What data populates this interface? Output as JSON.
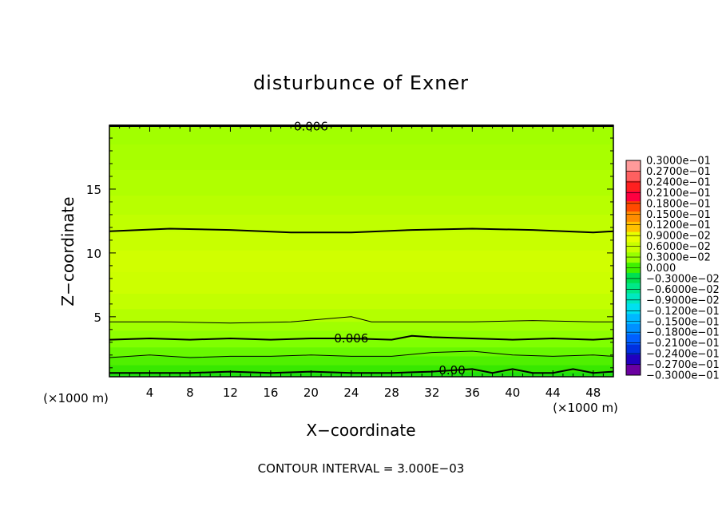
{
  "chart_data": {
    "type": "contour",
    "title": "disturbunce of Exner",
    "xlabel": "X−coordinate",
    "ylabel": "Z−coordinate",
    "x_unit_label": "(×1000 m)",
    "y_unit_label": "(×1000 m)",
    "xlim": [
      0,
      50
    ],
    "ylim": [
      0.3,
      20
    ],
    "x_ticks": [
      4,
      8,
      12,
      16,
      20,
      24,
      28,
      32,
      36,
      40,
      44,
      48
    ],
    "y_ticks": [
      5,
      10,
      15
    ],
    "contour_interval_note": "CONTOUR INTERVAL = 3.000E−03",
    "contour_interval": 0.003,
    "colorbar": {
      "labels": [
        "0.3000e−01",
        "0.2700e−01",
        "0.2400e−01",
        "0.2100e−01",
        "0.1800e−01",
        "0.1500e−01",
        "0.1200e−01",
        "0.9000e−02",
        "0.6000e−02",
        "0.3000e−02",
        "0.000",
        "−0.3000e−02",
        "−0.6000e−02",
        "−0.9000e−02",
        "−0.1200e−01",
        "−0.1500e−01",
        "−0.1800e−01",
        "−0.2100e−01",
        "−0.2400e−01",
        "−0.2700e−01",
        "−0.3000e−01"
      ],
      "colors": [
        "#ff9a9a",
        "#ff6060",
        "#ff2020",
        "#ff0040",
        "#ff4a00",
        "#ff8c00",
        "#ffc000",
        "#e8ff00",
        "#c8ff00",
        "#98ff00",
        "#40f000",
        "#00e050",
        "#00e888",
        "#00e8c0",
        "#00e0f0",
        "#00b8ff",
        "#0090ff",
        "#0060ff",
        "#0030e0",
        "#2000c0",
        "#6a00a0"
      ]
    },
    "contour_labels": [
      {
        "text": "0.006",
        "x": 24,
        "z": 3.3
      },
      {
        "text": "0.00",
        "x": 34,
        "z": 0.8
      },
      {
        "text": "0.006",
        "x": 20,
        "z": 19.9
      }
    ],
    "contour_lines": [
      {
        "level": 0.006,
        "x": [
          0,
          6,
          12,
          18,
          24,
          30,
          36,
          42,
          48,
          50
        ],
        "z": [
          11.7,
          11.9,
          11.8,
          11.6,
          11.6,
          11.8,
          11.9,
          11.8,
          11.6,
          11.7
        ]
      },
      {
        "level": 0.009,
        "x": [
          0,
          6,
          12,
          18,
          21,
          24,
          26,
          30,
          36,
          42,
          48,
          50
        ],
        "z": [
          4.6,
          4.6,
          4.5,
          4.6,
          4.8,
          5.0,
          4.6,
          4.6,
          4.6,
          4.7,
          4.6,
          4.6
        ]
      },
      {
        "level": 0.006,
        "x": [
          0,
          4,
          8,
          12,
          16,
          20,
          24,
          28,
          30,
          32,
          36,
          40,
          44,
          48,
          50
        ],
        "z": [
          3.2,
          3.3,
          3.2,
          3.3,
          3.2,
          3.3,
          3.3,
          3.2,
          3.5,
          3.4,
          3.3,
          3.2,
          3.3,
          3.2,
          3.3
        ]
      },
      {
        "level": 0.003,
        "x": [
          0,
          4,
          8,
          12,
          16,
          20,
          24,
          28,
          32,
          36,
          40,
          44,
          48,
          50
        ],
        "z": [
          1.8,
          2.0,
          1.8,
          1.9,
          1.9,
          2.0,
          1.9,
          1.9,
          2.2,
          2.3,
          2.0,
          1.9,
          2.0,
          1.9
        ]
      },
      {
        "level": 0.0,
        "x": [
          0,
          4,
          8,
          12,
          16,
          20,
          24,
          28,
          32,
          36,
          38,
          40,
          42,
          44,
          46,
          48,
          50
        ],
        "z": [
          0.6,
          0.6,
          0.6,
          0.7,
          0.6,
          0.7,
          0.6,
          0.6,
          0.7,
          0.9,
          0.6,
          0.9,
          0.6,
          0.6,
          0.9,
          0.6,
          0.7
        ]
      }
    ],
    "field_bands": [
      {
        "z_from": 18.5,
        "z_to": 20,
        "color": "#a2ff00"
      },
      {
        "z_from": 16.5,
        "z_to": 18.5,
        "color": "#a8ff00"
      },
      {
        "z_from": 14.5,
        "z_to": 16.5,
        "color": "#b0ff00"
      },
      {
        "z_from": 13,
        "z_to": 14.5,
        "color": "#b8ff00"
      },
      {
        "z_from": 11.7,
        "z_to": 13,
        "color": "#c0ff00"
      },
      {
        "z_from": 10.2,
        "z_to": 11.7,
        "color": "#c8ff00"
      },
      {
        "z_from": 8.5,
        "z_to": 10.2,
        "color": "#d0ff00"
      },
      {
        "z_from": 6.8,
        "z_to": 8.5,
        "color": "#ccff00"
      },
      {
        "z_from": 5.6,
        "z_to": 6.8,
        "color": "#c2ff00"
      },
      {
        "z_from": 4.6,
        "z_to": 5.6,
        "color": "#b4ff00"
      },
      {
        "z_from": 3.9,
        "z_to": 4.6,
        "color": "#a0ff00"
      },
      {
        "z_from": 3.25,
        "z_to": 3.9,
        "color": "#90ff00"
      },
      {
        "z_from": 2.6,
        "z_to": 3.25,
        "color": "#80ff00"
      },
      {
        "z_from": 1.9,
        "z_to": 2.6,
        "color": "#68f800"
      },
      {
        "z_from": 1.2,
        "z_to": 1.9,
        "color": "#50f000"
      },
      {
        "z_from": 0.65,
        "z_to": 1.2,
        "color": "#38e800"
      },
      {
        "z_from": 0.3,
        "z_to": 0.65,
        "color": "#20e010"
      }
    ]
  }
}
